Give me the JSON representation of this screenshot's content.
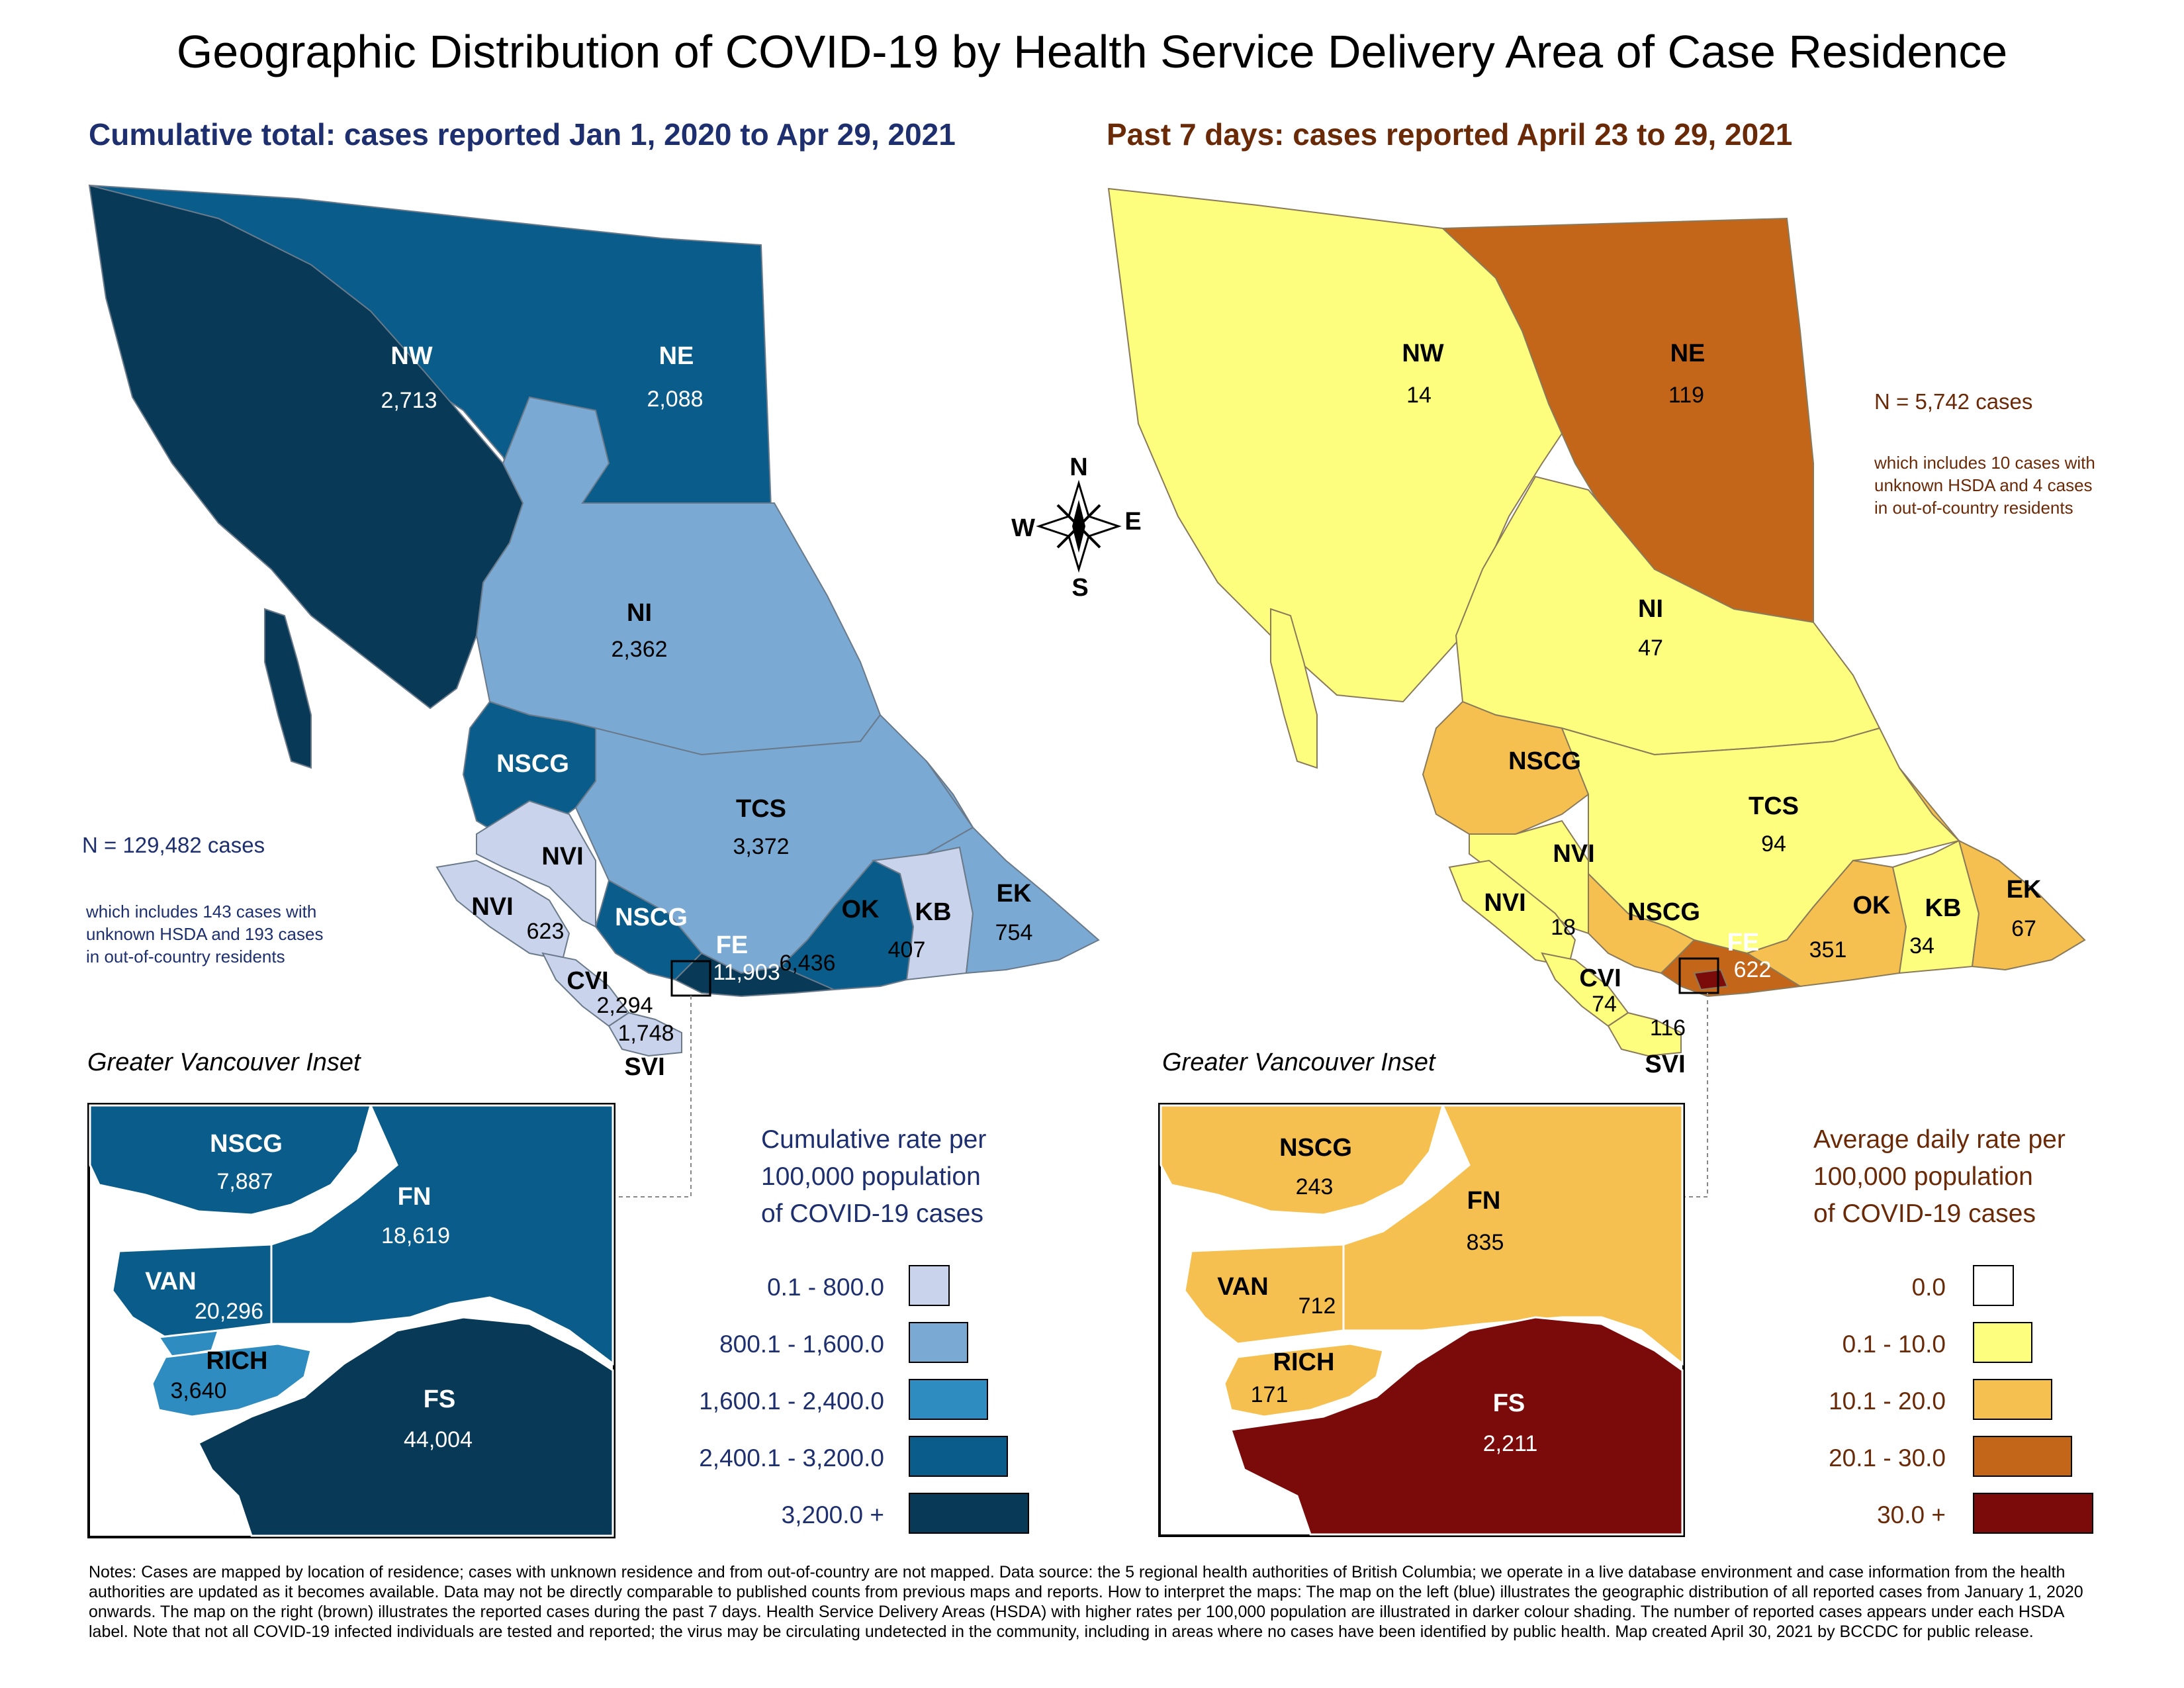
{
  "title": "Geographic Distribution of COVID-19 by Health Service Delivery Area of Case Residence",
  "left_map": {
    "subtitle": "Cumulative total: cases reported Jan 1, 2020 to Apr 29, 2021",
    "n_text": "N = 129,482 cases",
    "n_note": [
      "which includes 143 cases with",
      "unknown HSDA and 193 cases",
      "in out-of-country residents"
    ],
    "regions": {
      "nw": {
        "label": "NW",
        "value": "2,713"
      },
      "ne": {
        "label": "NE",
        "value": "2,088"
      },
      "ni": {
        "label": "NI",
        "value": "2,362"
      },
      "nscg": {
        "label": "NSCG"
      },
      "tcs": {
        "label": "TCS",
        "value": "3,372"
      },
      "nvi": {
        "label": "NVI",
        "value": "623"
      },
      "nscg2": {
        "label": "NSCG"
      },
      "fe": {
        "label": "FE",
        "value": "11,903"
      },
      "ok": {
        "label": "OK",
        "value": "6,436"
      },
      "kb": {
        "label": "KB",
        "value": "407"
      },
      "ek": {
        "label": "EK",
        "value": "754"
      },
      "cvi": {
        "label": "CVI",
        "value": "2,294"
      },
      "svi": {
        "label": "SVI",
        "value": "1,748"
      }
    },
    "inset": {
      "title": "Greater Vancouver Inset",
      "nscg": {
        "label": "NSCG",
        "value": "7,887"
      },
      "fn": {
        "label": "FN",
        "value": "18,619"
      },
      "van": {
        "label": "VAN",
        "value": "20,296"
      },
      "rich": {
        "label": "RICH",
        "value": "3,640"
      },
      "fs": {
        "label": "FS",
        "value": "44,004"
      }
    },
    "legend": {
      "title": [
        "Cumulative rate per",
        "100,000 population",
        "of COVID-19 cases"
      ],
      "items": [
        {
          "label": "0.1 - 800.0",
          "color": "#c9d3ec"
        },
        {
          "label": "800.1 - 1,600.0",
          "color": "#7aa9d3"
        },
        {
          "label": "1,600.1 - 2,400.0",
          "color": "#2e8cc0"
        },
        {
          "label": "2,400.1 - 3,200.0",
          "color": "#0a5d8a"
        },
        {
          "label": "3,200.0 +",
          "color": "#083a57"
        }
      ]
    }
  },
  "right_map": {
    "subtitle": "Past 7 days: cases reported April 23 to 29, 2021",
    "n_text": "N = 5,742 cases",
    "n_note": [
      "which includes 10 cases with",
      "unknown HSDA and 4 cases",
      "in out-of-country residents"
    ],
    "regions": {
      "nw": {
        "label": "NW",
        "value": "14"
      },
      "ne": {
        "label": "NE",
        "value": "119"
      },
      "ni": {
        "label": "NI",
        "value": "47"
      },
      "nscg": {
        "label": "NSCG"
      },
      "tcs": {
        "label": "TCS",
        "value": "94"
      },
      "nvi": {
        "label": "NVI"
      },
      "nvi_b": {
        "label": "NVI",
        "value": "18"
      },
      "nscg2": {
        "label": "NSCG"
      },
      "fe": {
        "label": "FE",
        "value": "622"
      },
      "ok": {
        "label": "OK",
        "value": "351"
      },
      "kb": {
        "label": "KB",
        "value": "34"
      },
      "ek": {
        "label": "EK",
        "value": "67"
      },
      "cvi": {
        "label": "CVI",
        "value": "74"
      },
      "svi": {
        "label": "SVI",
        "value": "116"
      }
    },
    "inset": {
      "title": "Greater Vancouver Inset",
      "nscg": {
        "label": "NSCG",
        "value": "243"
      },
      "fn": {
        "label": "FN",
        "value": "835"
      },
      "van": {
        "label": "VAN",
        "value": "712"
      },
      "rich": {
        "label": "RICH",
        "value": "171"
      },
      "fs": {
        "label": "FS",
        "value": "2,211"
      }
    },
    "legend": {
      "title": [
        "Average daily rate per",
        "100,000 population",
        "of COVID-19 cases"
      ],
      "items": [
        {
          "label": "0.0",
          "color": "#ffffff"
        },
        {
          "label": "0.1 - 10.0",
          "color": "#fdfd7e"
        },
        {
          "label": "10.1 - 20.0",
          "color": "#f5c04f"
        },
        {
          "label": "20.1 - 30.0",
          "color": "#c4661a"
        },
        {
          "label": "30.0 +",
          "color": "#7b0b0b"
        }
      ]
    }
  },
  "compass": {
    "n": "N",
    "s": "S",
    "e": "E",
    "w": "W"
  },
  "notes": "Notes: Cases are mapped by location of residence; cases with unknown residence and from out-of-country are not mapped. Data source: the 5 regional health authorities of British Columbia; we operate in a live database environment and case information from the health authorities are updated as it becomes available. Data may not be directly comparable to published counts from previous maps and reports. How to interpret the maps: The map on the left (blue) illustrates the geographic distribution of all reported cases from January 1, 2020 onwards. The map on the right (brown) illustrates the reported cases during the past 7 days. Health Service Delivery Areas (HSDA) with higher rates per 100,000 population are illustrated in darker colour shading. The number of reported cases appears under each HSDA label. Note that not all COVID-19 infected individuals are tested and reported; the virus may be circulating undetected in the community, including in areas where no cases have been identified by public health. Map created April 30, 2021 by BCCDC for public release."
}
